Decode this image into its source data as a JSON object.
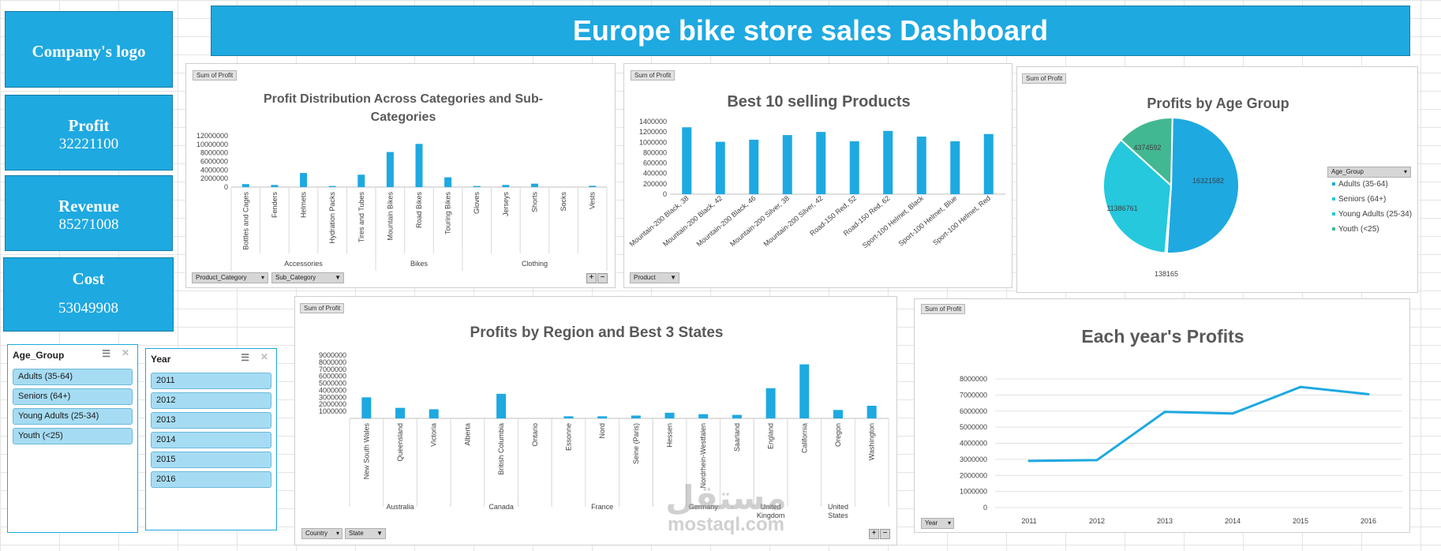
{
  "title": "Europe bike store sales Dashboard",
  "logo": "Company's logo",
  "kpis": {
    "profit": {
      "label": "Profit",
      "value": "32221100"
    },
    "revenue": {
      "label": "Revenue",
      "value": "85271008"
    },
    "cost": {
      "label": "Cost",
      "value": "53049908"
    }
  },
  "pill": "Sum of Profit",
  "slicers": {
    "age": {
      "header": "Age_Group",
      "items": [
        "Adults (35-64)",
        "Seniors (64+)",
        "Young Adults (25-34)",
        "Youth (<25)"
      ]
    },
    "year": {
      "header": "Year",
      "items": [
        "2011",
        "2012",
        "2013",
        "2014",
        "2015",
        "2016"
      ]
    }
  },
  "filters": {
    "product_category": "Product_Category",
    "sub_category": "Sub_Category",
    "product": "Product",
    "country": "Country",
    "state": "State",
    "year": "Year",
    "age_group": "Age_Group"
  },
  "watermark": {
    "arabic": "مستقل",
    "latin": "mostaql.com"
  },
  "colors": {
    "accent": "#1ea9e1",
    "pie": [
      "#1ea9e1",
      "#25c8dc",
      "#42b892"
    ]
  },
  "chart_data": [
    {
      "id": "categories",
      "type": "bar",
      "title": "Profit Distribution Across Categories and Sub-Categories",
      "title_lines": [
        "Profit Distribution Across Categories and Sub-",
        "Categories"
      ],
      "categories": [
        "Bottles and Cages",
        "Fenders",
        "Helmets",
        "Hydration Packs",
        "Tires and Tubes",
        "Mountain Bikes",
        "Road Bikes",
        "Touring Bikes",
        "Gloves",
        "Jerseys",
        "Shorts",
        "Socks",
        "Vests"
      ],
      "groups": [
        {
          "name": "Accessories",
          "count": 5
        },
        {
          "name": "Bikes",
          "count": 3
        },
        {
          "name": "Clothing",
          "count": 5
        }
      ],
      "values": [
        700000,
        500000,
        3300000,
        250000,
        2900000,
        8200000,
        10100000,
        2300000,
        250000,
        500000,
        800000,
        0,
        300000
      ],
      "yticks": [
        0,
        2000000,
        4000000,
        6000000,
        8000000,
        10000000,
        12000000
      ],
      "ylim": [
        0,
        12000000
      ]
    },
    {
      "id": "products",
      "type": "bar",
      "title": "Best 10 selling Products",
      "categories": [
        "Mountain-200 Black, 38",
        "Mountain-200 Black, 42",
        "Mountain-200 Black, 46",
        "Mountain-200 Silver, 38",
        "Mountain-200 Silver, 42",
        "Road-150 Red, 52",
        "Road-150 Red, 62",
        "Sport-100 Helmet, Black",
        "Sport-100 Helmet, Blue",
        "Sport-100 Helmet, Red"
      ],
      "values": [
        1290000,
        1010000,
        1050000,
        1140000,
        1200000,
        1020000,
        1220000,
        1110000,
        1020000,
        1160000
      ],
      "yticks": [
        0,
        200000,
        400000,
        600000,
        800000,
        1000000,
        1200000,
        1400000
      ],
      "ylim": [
        0,
        1400000
      ]
    },
    {
      "id": "age",
      "type": "pie",
      "title": "Profits by Age Group",
      "labels": [
        "Adults (35-64)",
        "Seniors (64+)",
        "Young Adults (25-34)",
        "Youth (<25)"
      ],
      "values": [
        16321582,
        138165,
        11386761,
        4374592
      ]
    },
    {
      "id": "region",
      "type": "bar",
      "title": "Profits by Region and Best 3 States",
      "categories": [
        "New South Wales",
        "Queensland",
        "Victoria",
        "Alberta",
        "British Columbia",
        "Ontario",
        "Essonne",
        "Nord",
        "Seine (Paris)",
        "Hessen",
        "Nordrhein-Westfalen",
        "Saarland",
        "England",
        "California",
        "Oregon",
        "Washington"
      ],
      "groups": [
        {
          "name": "Australia",
          "count": 3
        },
        {
          "name": "Canada",
          "count": 3
        },
        {
          "name": "France",
          "count": 3
        },
        {
          "name": "Germany",
          "count": 3
        },
        {
          "name": "United Kingdom",
          "count": 1
        },
        {
          "name": "United States",
          "count": 3
        }
      ],
      "values": [
        3000000,
        1500000,
        1300000,
        0,
        3500000,
        0,
        300000,
        300000,
        400000,
        800000,
        600000,
        500000,
        4300000,
        7700000,
        1200000,
        1800000
      ],
      "yticks": [
        1000000,
        2000000,
        3000000,
        4000000,
        5000000,
        6000000,
        7000000,
        8000000,
        9000000
      ],
      "ylim": [
        0,
        9000000
      ]
    },
    {
      "id": "years",
      "type": "line",
      "title": "Each year's Profits",
      "x": [
        "2011",
        "2012",
        "2013",
        "2014",
        "2015",
        "2016"
      ],
      "values": [
        2900000,
        2950000,
        5950000,
        5850000,
        7500000,
        7050000
      ],
      "yticks": [
        0,
        1000000,
        2000000,
        3000000,
        4000000,
        5000000,
        6000000,
        7000000,
        8000000
      ],
      "ylim": [
        0,
        8000000
      ]
    }
  ]
}
